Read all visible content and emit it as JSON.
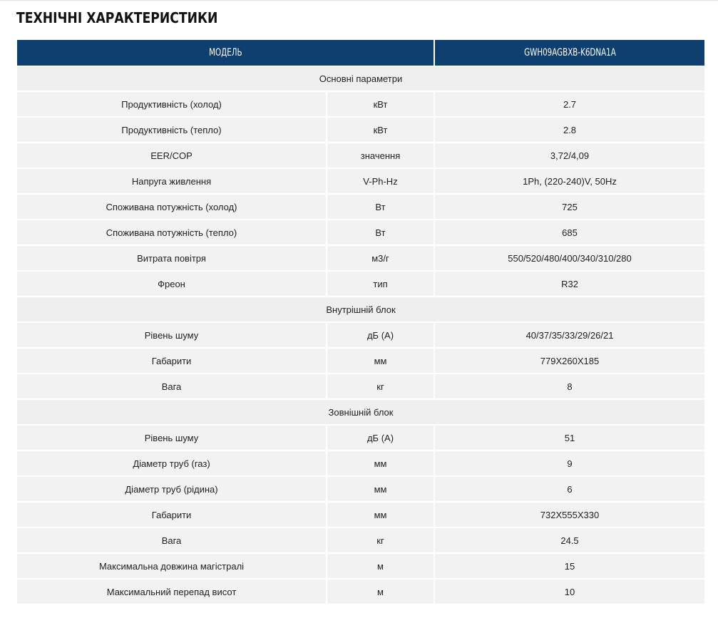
{
  "page": {
    "title": "ТЕХНІЧНІ ХАРАКТЕРИСТИКИ"
  },
  "table": {
    "header": {
      "label": "МОДЕЛЬ",
      "model": "GWH09AGBXB-K6DNA1A"
    },
    "sections": [
      {
        "name": "Основні параметри",
        "rows": [
          {
            "param": "Продуктивність (холод)",
            "unit": "кВт",
            "value": "2.7"
          },
          {
            "param": "Продуктивність (тепло)",
            "unit": "кВт",
            "value": "2.8"
          },
          {
            "param": "EER/COP",
            "unit": "значення",
            "value": "3,72/4,09"
          },
          {
            "param": "Напруга живлення",
            "unit": "V-Ph-Hz",
            "value": "1Ph, (220-240)V, 50Hz"
          },
          {
            "param": "Споживана потужність (холод)",
            "unit": "Вт",
            "value": "725"
          },
          {
            "param": "Споживана потужність (тепло)",
            "unit": "Вт",
            "value": "685"
          },
          {
            "param": "Витрата повітря",
            "unit": "м3/г",
            "value": "550/520/480/400/340/310/280"
          },
          {
            "param": "Фреон",
            "unit": "тип",
            "value": "R32"
          }
        ]
      },
      {
        "name": "Внутрішній блок",
        "rows": [
          {
            "param": "Рівень шуму",
            "unit": "дБ (А)",
            "value": "40/37/35/33/29/26/21"
          },
          {
            "param": "Габарити",
            "unit": "мм",
            "value": "779X260X185"
          },
          {
            "param": "Вага",
            "unit": "кг",
            "value": "8"
          }
        ]
      },
      {
        "name": "Зовнішній блок",
        "rows": [
          {
            "param": "Рівень шуму",
            "unit": "дБ (А)",
            "value": "51"
          },
          {
            "param": "Діаметр труб (газ)",
            "unit": "мм",
            "value": "9"
          },
          {
            "param": "Діаметр труб (рідина)",
            "unit": "мм",
            "value": "6"
          },
          {
            "param": "Габарити",
            "unit": "мм",
            "value": "732X555X330"
          },
          {
            "param": "Вага",
            "unit": "кг",
            "value": "24.5"
          },
          {
            "param": "Максимальна довжина магістралі",
            "unit": "м",
            "value": "15"
          },
          {
            "param": "Максимальний перепад висот",
            "unit": "м",
            "value": "10"
          }
        ]
      }
    ]
  },
  "colors": {
    "header_bg": "#0e3f6e",
    "row_bg": "#f2f2f2"
  }
}
